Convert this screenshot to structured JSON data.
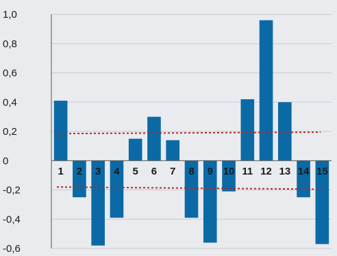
{
  "chart_data": {
    "type": "bar",
    "categories": [
      "1",
      "2",
      "3",
      "4",
      "5",
      "6",
      "7",
      "8",
      "9",
      "10",
      "11",
      "12",
      "13",
      "14",
      "15"
    ],
    "values": [
      0.41,
      -0.25,
      -0.58,
      -0.39,
      0.15,
      0.3,
      0.14,
      -0.39,
      -0.56,
      -0.21,
      0.42,
      0.96,
      0.4,
      -0.25,
      -0.57
    ],
    "ylim": [
      -0.6,
      1.0
    ],
    "yticks": [
      1.0,
      0.8,
      0.6,
      0.4,
      0.2,
      0,
      -0.2,
      -0.4,
      -0.6
    ],
    "ytick_labels": [
      "1,0",
      "0,8",
      "0,6",
      "0,4",
      "0,2",
      "0",
      "-0,2",
      "-0,4",
      "-0,6"
    ],
    "grid": true,
    "reference_lines": [
      {
        "y_start": 0.185,
        "y_end": 0.195,
        "style": "dotted"
      },
      {
        "y_start": -0.18,
        "y_end": -0.195,
        "style": "dotted"
      }
    ],
    "colors": {
      "bar": "#0b6aa6",
      "reference_line": "#b02a2a",
      "grid": "#c8cbcf",
      "axis": "#555555",
      "background": "#e9ebee"
    }
  }
}
